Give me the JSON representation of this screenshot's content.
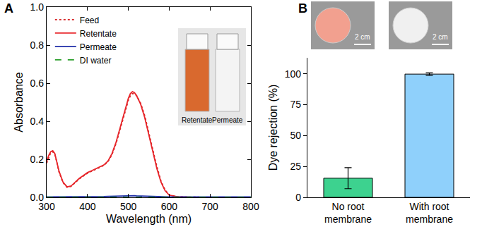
{
  "chart_data": [
    {
      "type": "line",
      "title": "A",
      "x_label": "Wavelength (nm)",
      "y_label": "Absorbance",
      "x": [
        300,
        305,
        310,
        315,
        320,
        325,
        330,
        340,
        350,
        360,
        370,
        380,
        390,
        400,
        410,
        420,
        430,
        440,
        450,
        460,
        470,
        480,
        490,
        500,
        505,
        510,
        515,
        520,
        530,
        540,
        550,
        560,
        570,
        580,
        590,
        600,
        620,
        650,
        700,
        750,
        800
      ],
      "series": [
        {
          "name": "Feed",
          "color": "#d62728",
          "line_style": "dot",
          "values": [
            0.18,
            0.21,
            0.235,
            0.24,
            0.225,
            0.185,
            0.135,
            0.078,
            0.053,
            0.058,
            0.077,
            0.097,
            0.112,
            0.127,
            0.137,
            0.147,
            0.157,
            0.168,
            0.187,
            0.225,
            0.283,
            0.36,
            0.44,
            0.51,
            0.535,
            0.545,
            0.545,
            0.535,
            0.495,
            0.43,
            0.34,
            0.25,
            0.16,
            0.085,
            0.038,
            0.013,
            0.003,
            0.001,
            0,
            0,
            0
          ]
        },
        {
          "name": "Retentate",
          "color": "#e8262b",
          "line_style": "solid",
          "values": [
            0.19,
            0.22,
            0.24,
            0.245,
            0.23,
            0.19,
            0.14,
            0.08,
            0.055,
            0.06,
            0.08,
            0.1,
            0.115,
            0.13,
            0.14,
            0.15,
            0.16,
            0.17,
            0.19,
            0.23,
            0.29,
            0.37,
            0.45,
            0.52,
            0.545,
            0.555,
            0.55,
            0.535,
            0.49,
            0.42,
            0.33,
            0.24,
            0.15,
            0.08,
            0.035,
            0.012,
            0.003,
            0.001,
            0,
            0,
            0
          ]
        },
        {
          "name": "Permeate",
          "color": "#1f2fa8",
          "line_style": "solid",
          "values": [
            0.002,
            0.002,
            0.002,
            0.002,
            0.002,
            0.002,
            0.002,
            0.002,
            0.002,
            0.002,
            0.002,
            0.002,
            0.002,
            0.002,
            0.002,
            0.003,
            0.003,
            0.004,
            0.005,
            0.006,
            0.007,
            0.008,
            0.009,
            0.009,
            0.009,
            0.009,
            0.009,
            0.008,
            0.007,
            0.006,
            0.005,
            0.004,
            0.003,
            0.002,
            0.002,
            0.002,
            0.002,
            0.002,
            0.002,
            0.002,
            0.002
          ]
        },
        {
          "name": "DI water",
          "color": "#2ca02c",
          "line_style": "dash",
          "values": [
            0,
            0,
            0,
            0,
            0,
            0,
            0,
            0,
            0,
            0,
            0,
            0,
            0,
            0,
            0,
            0,
            0,
            0,
            0,
            0,
            0,
            0,
            0,
            0,
            0,
            0,
            0,
            0,
            0,
            0,
            0,
            0,
            0,
            0,
            0,
            0,
            0,
            0,
            0,
            0,
            0
          ]
        }
      ],
      "xlim": [
        300,
        800
      ],
      "xticks": [
        300,
        400,
        500,
        600,
        700,
        800
      ],
      "ylim": [
        0,
        1
      ],
      "yticks": [
        {
          "value": 0,
          "label": "0.0"
        },
        0.2,
        0.4,
        0.6,
        0.8,
        {
          "value": 1,
          "label": "1.0"
        }
      ],
      "legend": "upper left",
      "annotations": [
        "Retentate",
        "Permeate"
      ]
    },
    {
      "type": "bar",
      "title": "B",
      "y_label": "Dye rejection (%)",
      "categories": [
        "No root membrane",
        "With root membrane"
      ],
      "values": [
        15.5,
        99.8
      ],
      "errors": [
        8.5,
        1.0
      ],
      "colors": [
        "#3dd28f",
        "#8fd0fb"
      ],
      "ylim": [
        0,
        113
      ],
      "yticks": [
        0,
        25,
        50,
        75,
        100
      ],
      "annotations": [
        "2 cm",
        "2 cm"
      ]
    }
  ]
}
